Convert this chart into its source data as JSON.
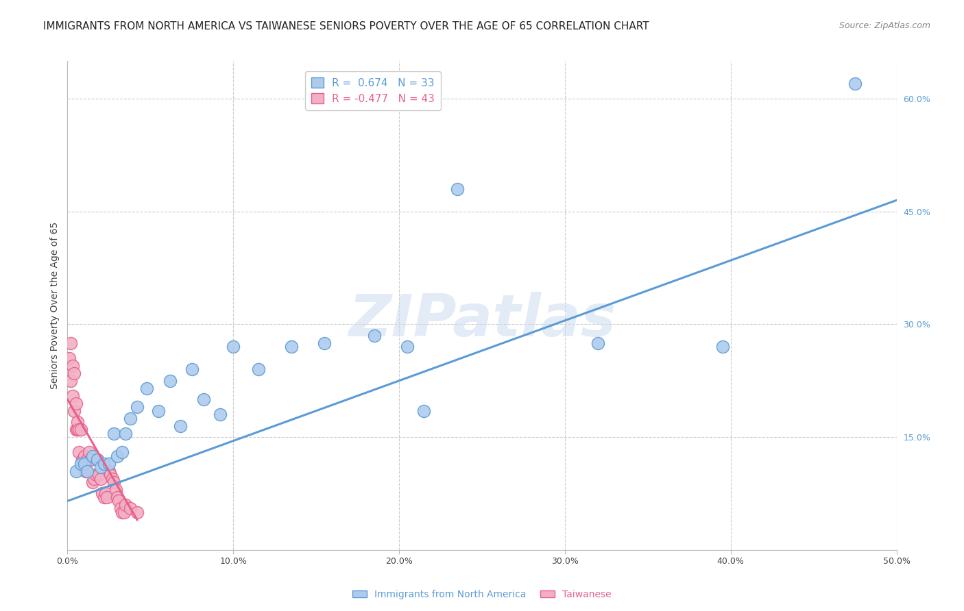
{
  "title": "IMMIGRANTS FROM NORTH AMERICA VS TAIWANESE SENIORS POVERTY OVER THE AGE OF 65 CORRELATION CHART",
  "source": "Source: ZipAtlas.com",
  "ylabel": "Seniors Poverty Over the Age of 65",
  "xlim": [
    0.0,
    0.5
  ],
  "ylim": [
    0.0,
    0.65
  ],
  "xticks": [
    0.0,
    0.1,
    0.2,
    0.3,
    0.4,
    0.5
  ],
  "yticks_right": [
    0.0,
    0.15,
    0.3,
    0.45,
    0.6
  ],
  "ytick_labels_right": [
    "",
    "15.0%",
    "30.0%",
    "45.0%",
    "60.0%"
  ],
  "xtick_labels": [
    "0.0%",
    "",
    "10.0%",
    "",
    "20.0%",
    "",
    "30.0%",
    "",
    "40.0%",
    "",
    "50.0%"
  ],
  "xtick_vals": [
    0.0,
    0.05,
    0.1,
    0.15,
    0.2,
    0.25,
    0.3,
    0.35,
    0.4,
    0.45,
    0.5
  ],
  "legend_entry_blue": "R =  0.674   N = 33",
  "legend_entry_pink": "R = -0.477   N = 43",
  "blue_scatter_x": [
    0.005,
    0.008,
    0.01,
    0.012,
    0.015,
    0.018,
    0.02,
    0.022,
    0.025,
    0.028,
    0.03,
    0.033,
    0.035,
    0.038,
    0.042,
    0.048,
    0.055,
    0.062,
    0.068,
    0.075,
    0.082,
    0.092,
    0.1,
    0.115,
    0.135,
    0.155,
    0.185,
    0.205,
    0.215,
    0.235,
    0.32,
    0.395,
    0.475
  ],
  "blue_scatter_y": [
    0.105,
    0.115,
    0.115,
    0.105,
    0.125,
    0.12,
    0.11,
    0.115,
    0.115,
    0.155,
    0.125,
    0.13,
    0.155,
    0.175,
    0.19,
    0.215,
    0.185,
    0.225,
    0.165,
    0.24,
    0.2,
    0.18,
    0.27,
    0.24,
    0.27,
    0.275,
    0.285,
    0.27,
    0.185,
    0.48,
    0.275,
    0.27,
    0.62
  ],
  "pink_scatter_x": [
    0.001,
    0.002,
    0.002,
    0.003,
    0.003,
    0.004,
    0.004,
    0.005,
    0.005,
    0.006,
    0.006,
    0.007,
    0.007,
    0.008,
    0.009,
    0.01,
    0.011,
    0.012,
    0.013,
    0.014,
    0.015,
    0.016,
    0.017,
    0.018,
    0.019,
    0.02,
    0.021,
    0.022,
    0.023,
    0.024,
    0.025,
    0.026,
    0.027,
    0.028,
    0.029,
    0.03,
    0.031,
    0.032,
    0.033,
    0.034,
    0.035,
    0.038,
    0.042
  ],
  "pink_scatter_y": [
    0.255,
    0.225,
    0.275,
    0.205,
    0.245,
    0.185,
    0.235,
    0.16,
    0.195,
    0.16,
    0.17,
    0.16,
    0.13,
    0.16,
    0.12,
    0.125,
    0.105,
    0.12,
    0.13,
    0.12,
    0.09,
    0.095,
    0.1,
    0.12,
    0.1,
    0.095,
    0.075,
    0.07,
    0.075,
    0.07,
    0.105,
    0.1,
    0.095,
    0.09,
    0.08,
    0.07,
    0.065,
    0.055,
    0.05,
    0.05,
    0.06,
    0.055,
    0.05
  ],
  "blue_line_x": [
    0.0,
    0.5
  ],
  "blue_line_y": [
    0.065,
    0.465
  ],
  "pink_line_x": [
    0.0,
    0.042
  ],
  "pink_line_y": [
    0.2,
    0.04
  ],
  "blue_color": "#5b9bd5",
  "pink_color": "#e8608a",
  "blue_fill": "#aecbee",
  "pink_fill": "#f2b0c5",
  "watermark_text": "ZIPatlas",
  "background_color": "#ffffff",
  "grid_color": "#cccccc",
  "title_fontsize": 11,
  "axis_label_fontsize": 10,
  "tick_fontsize": 9,
  "legend_fontsize": 11,
  "scatter_size": 170
}
